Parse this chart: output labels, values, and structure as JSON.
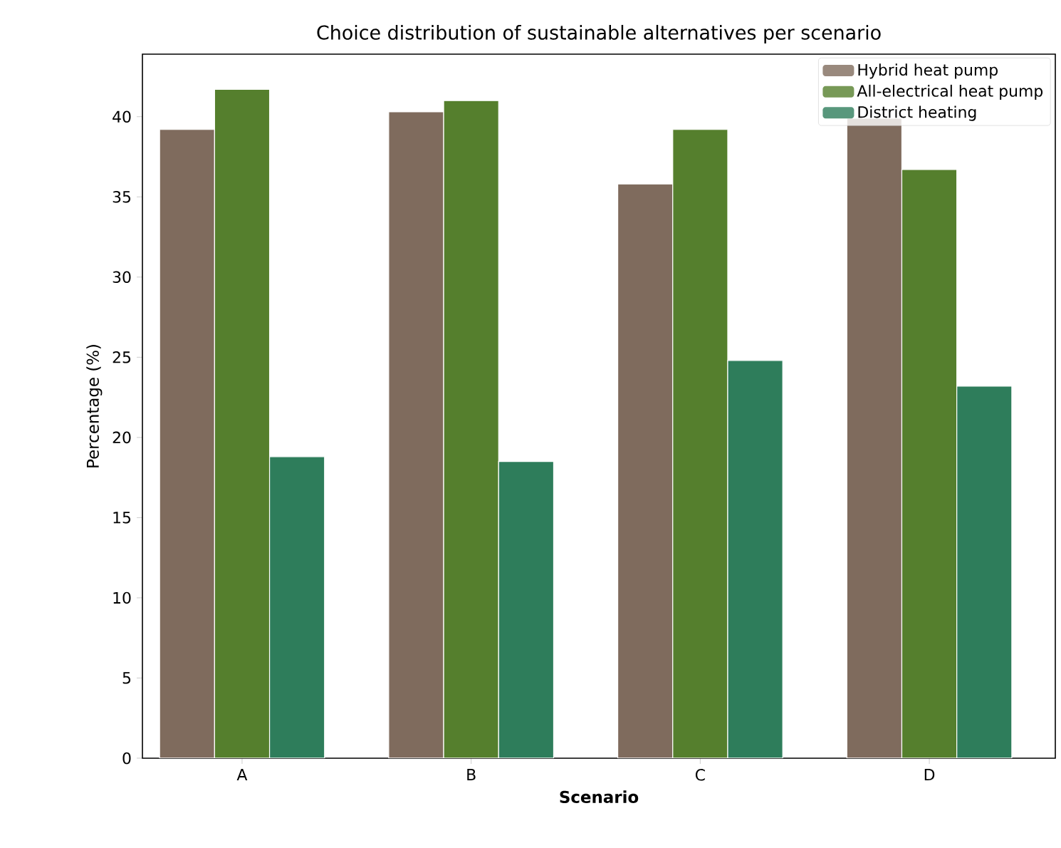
{
  "chart_data": {
    "type": "bar",
    "title": "Choice distribution of sustainable alternatives per scenario",
    "xlabel": "**Scenario**",
    "ylabel": "Percentage (%)",
    "categories": [
      "A",
      "B",
      "C",
      "D"
    ],
    "series": [
      {
        "name": "Hybrid heat pump",
        "color": "#7f6b5d",
        "values": [
          39.2,
          40.3,
          35.8,
          39.9
        ]
      },
      {
        "name": "All-electrical heat pump",
        "color": "#557f2d",
        "values": [
          41.7,
          41.0,
          39.2,
          36.7
        ]
      },
      {
        "name": "District heating",
        "color": "#2e7d5b",
        "values": [
          18.8,
          18.5,
          24.8,
          23.2
        ]
      }
    ],
    "ylim": [
      0,
      43.9
    ],
    "yticks": [
      0,
      5,
      10,
      15,
      20,
      25,
      30,
      35,
      40
    ],
    "legend": "top right",
    "grid": false
  }
}
